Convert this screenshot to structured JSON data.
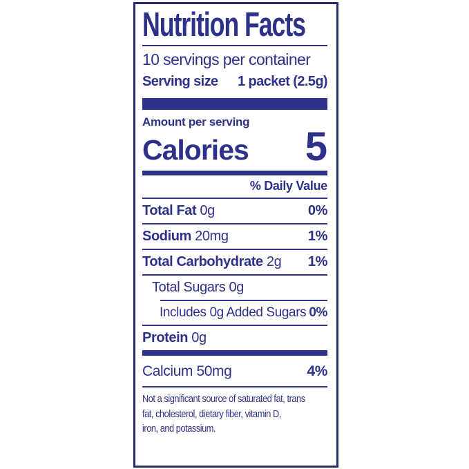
{
  "nutrition_label": {
    "title": "Nutrition Facts",
    "servings_per_container": "10 servings per container",
    "serving_size": {
      "label": "Serving size",
      "value": "1 packet (2.5g)"
    },
    "amount_per_serving_label": "Amount per serving",
    "calories": {
      "label": "Calories",
      "value": "5"
    },
    "daily_value_header": "% Daily Value",
    "nutrients": [
      {
        "name": "Total Fat",
        "amount": "0g",
        "daily_value": "0%"
      },
      {
        "name": "Sodium",
        "amount": "20mg",
        "daily_value": "1%"
      },
      {
        "name": "Total Carbohydrate",
        "amount": "2g",
        "daily_value": "1%"
      },
      {
        "name": "Total Sugars",
        "amount": "0g",
        "daily_value": ""
      },
      {
        "name": "Includes 0g Added Sugars",
        "amount": "",
        "daily_value": "0%"
      },
      {
        "name": "Protein",
        "amount": "0g",
        "daily_value": ""
      }
    ],
    "minerals": [
      {
        "name": "Calcium 50mg",
        "daily_value": "4%"
      }
    ],
    "footnote": {
      "lines": [
        "Not a significant source of saturated fat, trans",
        "fat, cholesterol, dietary fiber, vitamin D,",
        "iron, and potassium."
      ]
    },
    "colors": {
      "ink": "#2e3189",
      "border": "#262a6e",
      "background": "#ffffff"
    }
  }
}
